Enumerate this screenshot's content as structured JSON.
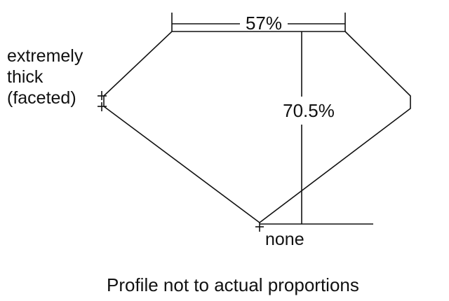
{
  "diagram": {
    "table_label": "57%",
    "depth_label": "70.5%",
    "girdle_label_lines": [
      "extremely",
      "thick",
      "(faceted)"
    ],
    "culet_label": "none",
    "caption": "Profile not to actual proportions",
    "line_color": "#111111"
  }
}
